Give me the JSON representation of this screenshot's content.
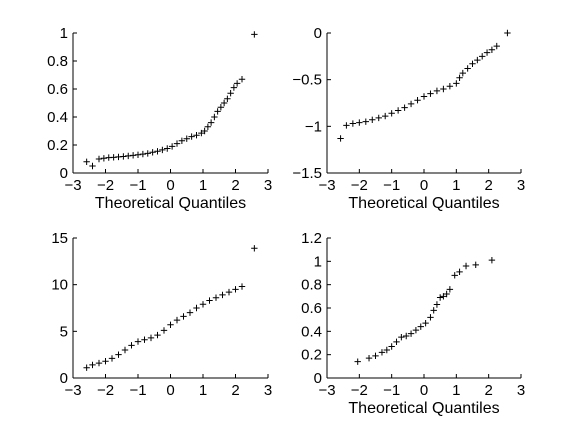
{
  "chart_data": [
    {
      "type": "scatter",
      "marker": "+",
      "xlabel": "Theoretical Quantiles",
      "ylabel": "",
      "xlim": [
        -3,
        3
      ],
      "ylim": [
        0,
        1
      ],
      "xticks": [
        -3,
        -2,
        -1,
        0,
        1,
        2,
        3
      ],
      "yticks": [
        0,
        0.2,
        0.4,
        0.6,
        0.8,
        1
      ],
      "x_tick_labels": [
        "−3",
        "−2",
        "−1",
        "0",
        "1",
        "2",
        "3"
      ],
      "y_tick_labels": [
        "0",
        "0.2",
        "0.4",
        "0.6",
        "0.8",
        "1"
      ],
      "n_points": 100,
      "points": [
        [
          -2.58,
          0.08
        ],
        [
          -2.4,
          0.05
        ],
        [
          -2.2,
          0.1
        ],
        [
          -2.05,
          0.105
        ],
        [
          -1.9,
          0.11
        ],
        [
          -1.75,
          0.112
        ],
        [
          -1.6,
          0.115
        ],
        [
          -1.45,
          0.118
        ],
        [
          -1.3,
          0.122
        ],
        [
          -1.15,
          0.126
        ],
        [
          -1.0,
          0.13
        ],
        [
          -0.85,
          0.135
        ],
        [
          -0.7,
          0.14
        ],
        [
          -0.55,
          0.148
        ],
        [
          -0.4,
          0.155
        ],
        [
          -0.25,
          0.165
        ],
        [
          -0.1,
          0.175
        ],
        [
          0.05,
          0.19
        ],
        [
          0.2,
          0.21
        ],
        [
          0.35,
          0.23
        ],
        [
          0.5,
          0.245
        ],
        [
          0.65,
          0.26
        ],
        [
          0.8,
          0.27
        ],
        [
          0.95,
          0.285
        ],
        [
          1.05,
          0.3
        ],
        [
          1.15,
          0.33
        ],
        [
          1.25,
          0.36
        ],
        [
          1.35,
          0.4
        ],
        [
          1.45,
          0.44
        ],
        [
          1.55,
          0.47
        ],
        [
          1.65,
          0.5
        ],
        [
          1.75,
          0.53
        ],
        [
          1.85,
          0.57
        ],
        [
          1.95,
          0.61
        ],
        [
          2.05,
          0.64
        ],
        [
          2.2,
          0.67
        ],
        [
          2.58,
          0.99
        ]
      ]
    },
    {
      "type": "scatter",
      "marker": "+",
      "xlabel": "Theoretical Quantiles",
      "ylabel": "",
      "xlim": [
        -3,
        3
      ],
      "ylim": [
        -1.5,
        0
      ],
      "xticks": [
        -3,
        -2,
        -1,
        0,
        1,
        2,
        3
      ],
      "yticks": [
        -1.5,
        -1,
        -0.5,
        0
      ],
      "x_tick_labels": [
        "−3",
        "−2",
        "−1",
        "0",
        "1",
        "2",
        "3"
      ],
      "y_tick_labels": [
        "−1.5",
        "−1",
        "−0.5",
        "0"
      ],
      "n_points": 100,
      "points": [
        [
          -2.58,
          -1.13
        ],
        [
          -2.4,
          -0.99
        ],
        [
          -2.2,
          -0.97
        ],
        [
          -2.0,
          -0.96
        ],
        [
          -1.8,
          -0.95
        ],
        [
          -1.6,
          -0.93
        ],
        [
          -1.4,
          -0.91
        ],
        [
          -1.2,
          -0.89
        ],
        [
          -1.0,
          -0.86
        ],
        [
          -0.8,
          -0.83
        ],
        [
          -0.6,
          -0.8
        ],
        [
          -0.4,
          -0.76
        ],
        [
          -0.2,
          -0.72
        ],
        [
          0.0,
          -0.68
        ],
        [
          0.2,
          -0.65
        ],
        [
          0.4,
          -0.62
        ],
        [
          0.6,
          -0.6
        ],
        [
          0.8,
          -0.57
        ],
        [
          1.0,
          -0.54
        ],
        [
          1.1,
          -0.48
        ],
        [
          1.2,
          -0.43
        ],
        [
          1.35,
          -0.38
        ],
        [
          1.5,
          -0.33
        ],
        [
          1.65,
          -0.29
        ],
        [
          1.8,
          -0.25
        ],
        [
          1.95,
          -0.21
        ],
        [
          2.1,
          -0.18
        ],
        [
          2.25,
          -0.14
        ],
        [
          2.58,
          0.0
        ]
      ]
    },
    {
      "type": "scatter",
      "marker": "+",
      "xlabel": "",
      "ylabel": "",
      "xlim": [
        -3,
        3
      ],
      "ylim": [
        0,
        15
      ],
      "xticks": [
        -3,
        -2,
        -1,
        0,
        1,
        2,
        3
      ],
      "yticks": [
        0,
        5,
        10,
        15
      ],
      "x_tick_labels": [
        "−3",
        "−2",
        "−1",
        "0",
        "1",
        "2",
        "3"
      ],
      "y_tick_labels": [
        "0",
        "5",
        "10",
        "15"
      ],
      "n_points": 100,
      "points": [
        [
          -2.58,
          1.1
        ],
        [
          -2.4,
          1.4
        ],
        [
          -2.2,
          1.6
        ],
        [
          -2.0,
          1.8
        ],
        [
          -1.8,
          2.1
        ],
        [
          -1.6,
          2.5
        ],
        [
          -1.4,
          3.0
        ],
        [
          -1.2,
          3.5
        ],
        [
          -1.0,
          3.9
        ],
        [
          -0.8,
          4.1
        ],
        [
          -0.6,
          4.3
        ],
        [
          -0.4,
          4.6
        ],
        [
          -0.2,
          5.1
        ],
        [
          0.0,
          5.7
        ],
        [
          0.2,
          6.2
        ],
        [
          0.4,
          6.6
        ],
        [
          0.6,
          7.0
        ],
        [
          0.8,
          7.5
        ],
        [
          1.0,
          7.9
        ],
        [
          1.2,
          8.3
        ],
        [
          1.4,
          8.6
        ],
        [
          1.6,
          8.9
        ],
        [
          1.8,
          9.2
        ],
        [
          2.0,
          9.5
        ],
        [
          2.2,
          9.8
        ],
        [
          2.58,
          13.9
        ]
      ]
    },
    {
      "type": "scatter",
      "marker": "+",
      "xlabel": "Theoretical Quantiles",
      "ylabel": "",
      "xlim": [
        -3,
        3
      ],
      "ylim": [
        0,
        1.2
      ],
      "xticks": [
        -3,
        -2,
        -1,
        0,
        1,
        2,
        3
      ],
      "yticks": [
        0,
        0.2,
        0.4,
        0.6,
        0.8,
        1,
        1.2
      ],
      "x_tick_labels": [
        "−3",
        "−2",
        "−1",
        "0",
        "1",
        "2",
        "3"
      ],
      "y_tick_labels": [
        "0",
        "0.2",
        "0.4",
        "0.6",
        "0.8",
        "1",
        "1.2"
      ],
      "n_points": 30,
      "points": [
        [
          -2.05,
          0.14
        ],
        [
          -1.7,
          0.17
        ],
        [
          -1.5,
          0.19
        ],
        [
          -1.3,
          0.22
        ],
        [
          -1.15,
          0.24
        ],
        [
          -1.0,
          0.27
        ],
        [
          -0.85,
          0.31
        ],
        [
          -0.7,
          0.35
        ],
        [
          -0.55,
          0.36
        ],
        [
          -0.4,
          0.38
        ],
        [
          -0.25,
          0.41
        ],
        [
          -0.1,
          0.44
        ],
        [
          0.05,
          0.47
        ],
        [
          0.2,
          0.52
        ],
        [
          0.3,
          0.58
        ],
        [
          0.4,
          0.63
        ],
        [
          0.5,
          0.69
        ],
        [
          0.6,
          0.7
        ],
        [
          0.7,
          0.72
        ],
        [
          0.8,
          0.76
        ],
        [
          0.95,
          0.88
        ],
        [
          1.1,
          0.91
        ],
        [
          1.3,
          0.96
        ],
        [
          1.6,
          0.97
        ],
        [
          2.1,
          1.01
        ]
      ]
    }
  ]
}
